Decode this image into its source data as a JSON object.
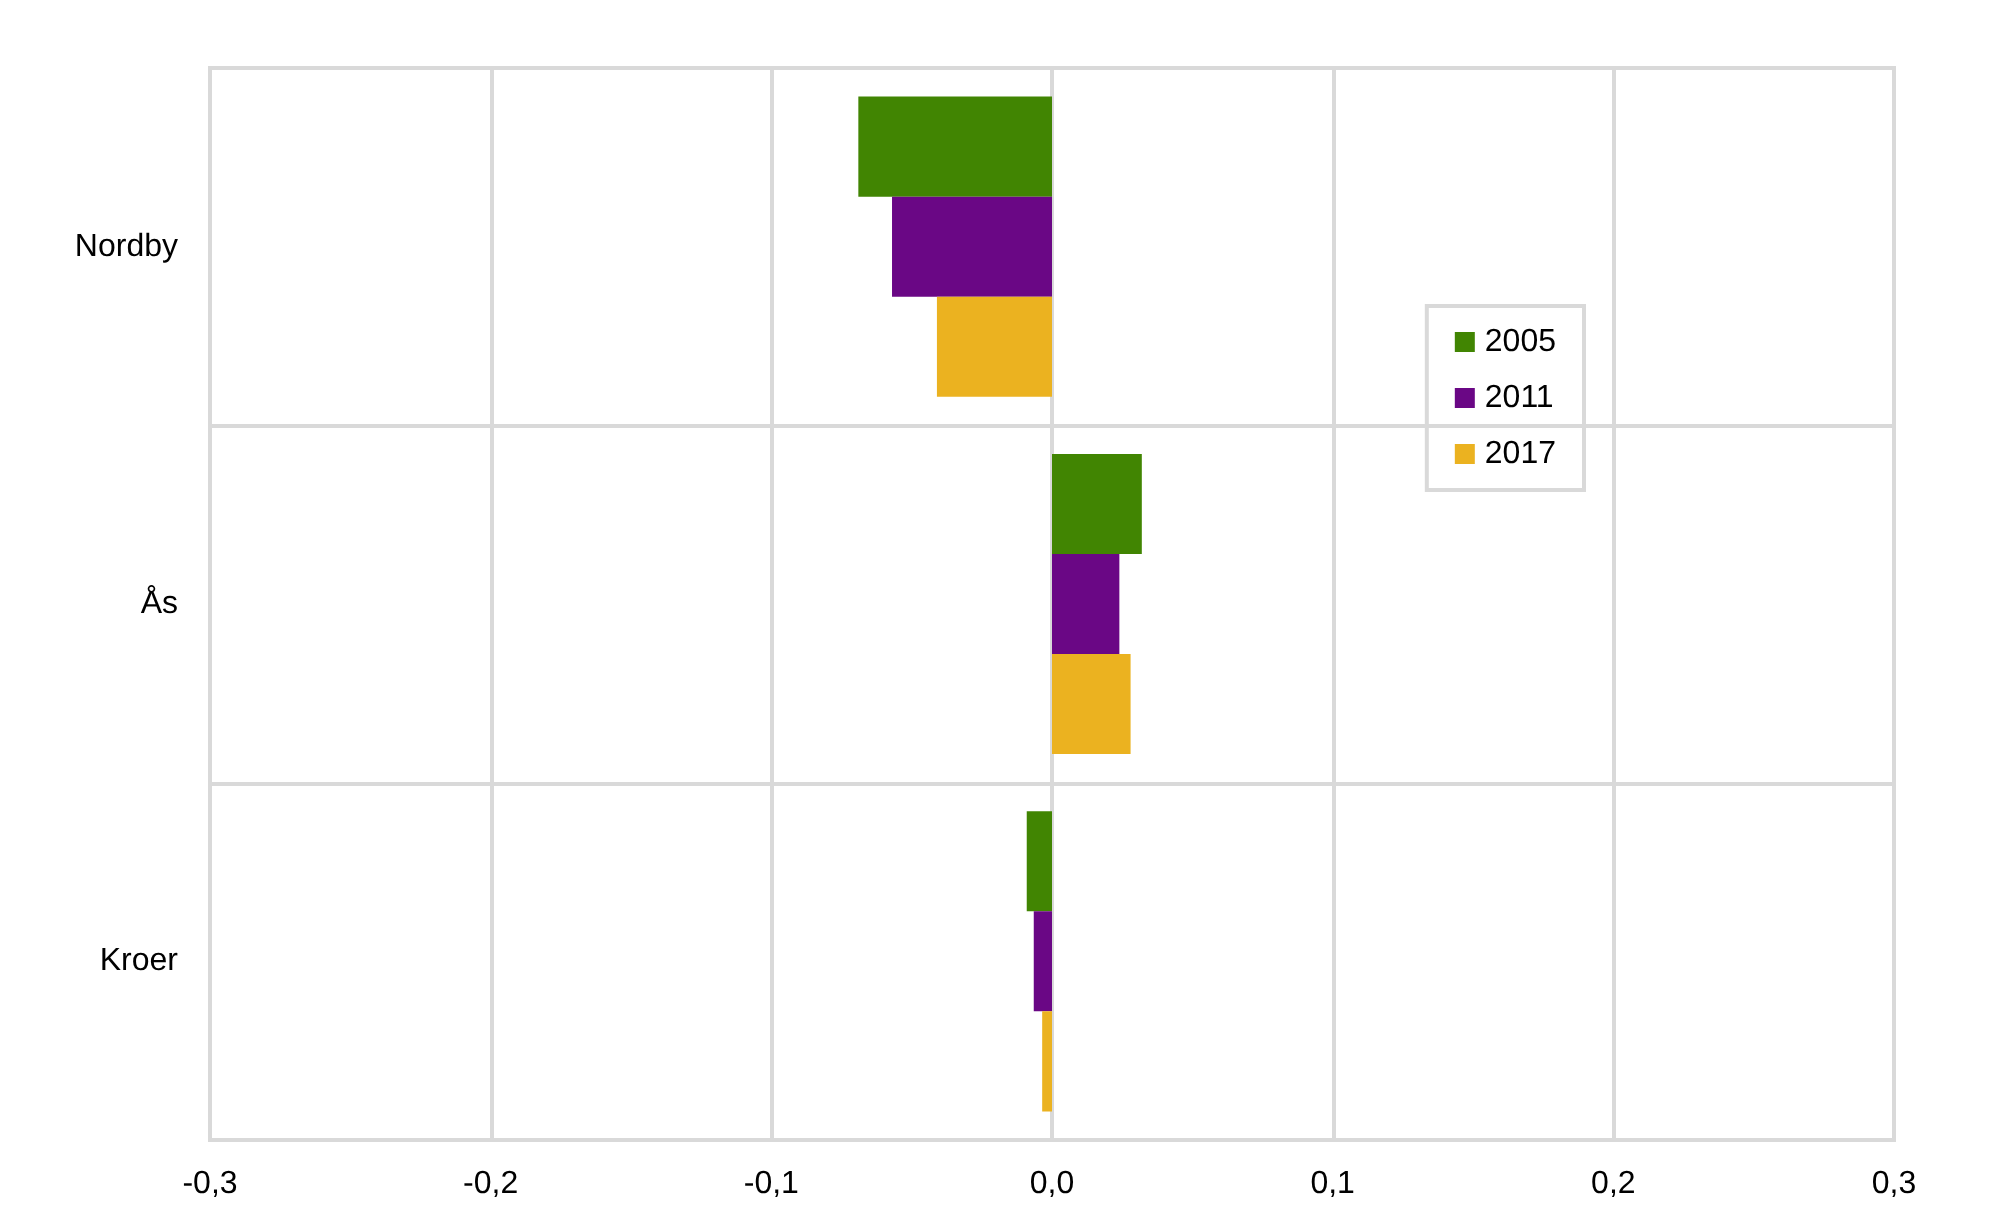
{
  "chart_data": {
    "type": "bar",
    "orientation": "horizontal",
    "categories": [
      "Nordby",
      "Ås",
      "Kroer"
    ],
    "series": [
      {
        "name": "2005",
        "color": "#418502",
        "values": [
          -0.069,
          0.032,
          -0.009
        ]
      },
      {
        "name": "2011",
        "color": "#6a0785",
        "values": [
          -0.057,
          0.024,
          -0.0065
        ]
      },
      {
        "name": "2017",
        "color": "#ebb220",
        "values": [
          -0.041,
          0.028,
          -0.0035
        ]
      }
    ],
    "xlim": [
      -0.3,
      0.3
    ],
    "xticks": [
      {
        "value": -0.3,
        "label": "-0,3"
      },
      {
        "value": -0.2,
        "label": "-0,2"
      },
      {
        "value": -0.1,
        "label": "-0,1"
      },
      {
        "value": 0,
        "label": "0,0"
      },
      {
        "value": 0.1,
        "label": "0,1"
      },
      {
        "value": 0.2,
        "label": "0,2"
      },
      {
        "value": 0.3,
        "label": "0,3"
      }
    ],
    "grid": true,
    "legend": "right"
  }
}
